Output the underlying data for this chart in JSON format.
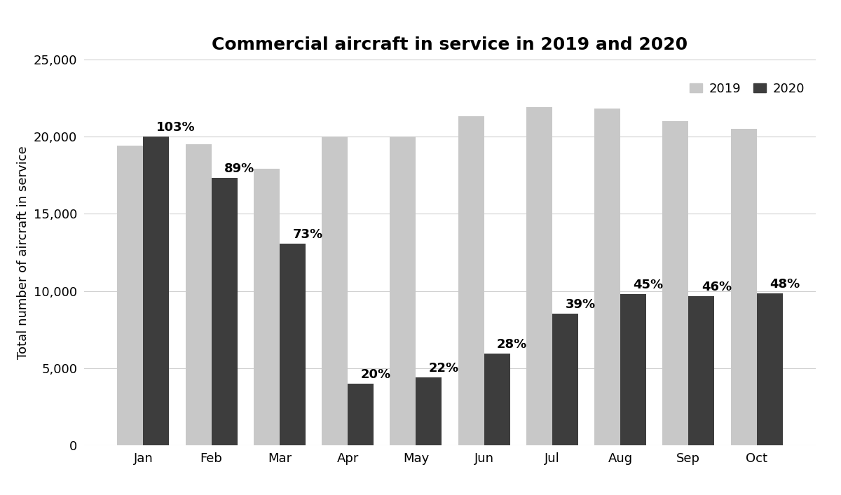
{
  "title": "Commercial aircraft in service in 2019 and 2020",
  "ylabel": "Total number of aircraft in service",
  "months": [
    "Jan",
    "Feb",
    "Mar",
    "Apr",
    "May",
    "Jun",
    "Jul",
    "Aug",
    "Sep",
    "Oct"
  ],
  "values_2019": [
    19400,
    19500,
    17900,
    20000,
    20000,
    21300,
    21900,
    21800,
    21000,
    20500
  ],
  "values_2020": [
    20000,
    17350,
    13050,
    4000,
    4400,
    5950,
    8550,
    9800,
    9650,
    9850
  ],
  "percentages": [
    "103%",
    "89%",
    "73%",
    "20%",
    "22%",
    "28%",
    "39%",
    "45%",
    "46%",
    "48%"
  ],
  "color_2019": "#c8c8c8",
  "color_2020": "#3d3d3d",
  "ylim": [
    0,
    25000
  ],
  "yticks": [
    0,
    5000,
    10000,
    15000,
    20000,
    25000
  ],
  "ytick_labels": [
    "0",
    "5,000",
    "10,000",
    "15,000",
    "20,000",
    "25,000"
  ],
  "bar_width": 0.38,
  "title_fontsize": 18,
  "label_fontsize": 13,
  "tick_fontsize": 13,
  "pct_fontsize": 13,
  "legend_fontsize": 13,
  "background_color": "#ffffff",
  "grid_color": "#d0d0d0"
}
